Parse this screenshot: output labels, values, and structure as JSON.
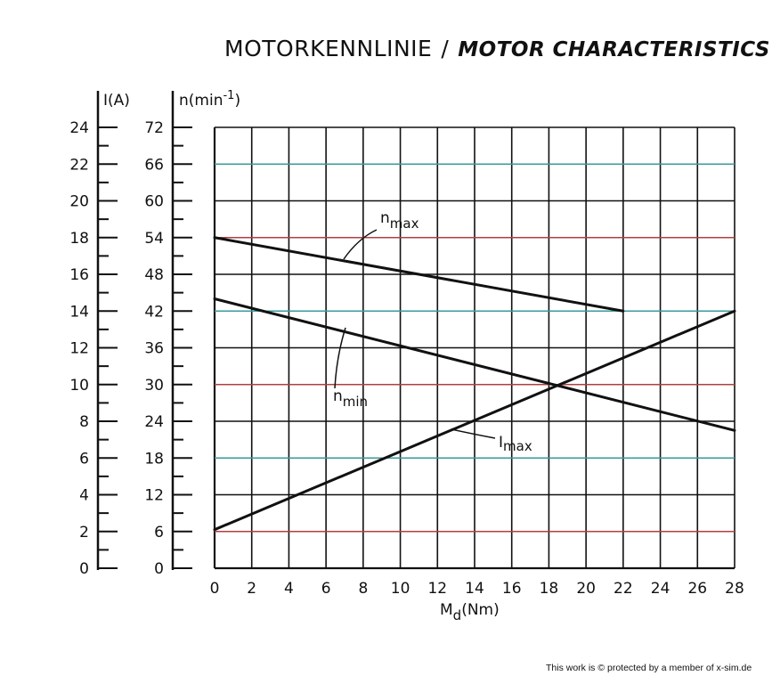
{
  "title": {
    "de": "MOTORKENNLINIE",
    "separator": "/",
    "en": "MOTOR CHARACTERISTICS"
  },
  "axes": {
    "current_label": "I(A)",
    "speed_label_base": "n(min",
    "speed_label_exp": "-1",
    "speed_label_close": ")",
    "x_label_base": "M",
    "x_label_sub": "d",
    "x_label_unit": "(Nm)"
  },
  "footer": "This work is © protected by a member of x-sim.de",
  "colors": {
    "line": "#111111",
    "grid": "#111111",
    "grid_tint_red": "#b04040",
    "grid_tint_teal": "#3a9a9a"
  },
  "chart_data": {
    "type": "line",
    "x": {
      "label": "Md(Nm)",
      "range": [
        0,
        28
      ],
      "ticks": [
        0,
        2,
        4,
        6,
        8,
        10,
        12,
        14,
        16,
        18,
        20,
        22,
        24,
        26,
        28
      ]
    },
    "y_current": {
      "label": "I(A)",
      "range": [
        0,
        24
      ],
      "ticks": [
        0,
        2,
        4,
        6,
        8,
        10,
        12,
        14,
        16,
        18,
        20,
        22,
        24
      ]
    },
    "y_speed": {
      "label": "n(min-1)",
      "range": [
        0,
        72
      ],
      "ticks": [
        0,
        6,
        12,
        18,
        24,
        30,
        36,
        42,
        48,
        54,
        60,
        66,
        72
      ]
    },
    "grid": true,
    "series": [
      {
        "name": "n max",
        "label_main": "n",
        "label_sub": "max",
        "axis": "speed",
        "x": [
          0,
          22
        ],
        "y": [
          54,
          42
        ]
      },
      {
        "name": "n min",
        "label_main": "n",
        "label_sub": "min",
        "axis": "speed",
        "x": [
          0,
          28
        ],
        "y": [
          44,
          22.5
        ]
      },
      {
        "name": "I max",
        "label_main": "I",
        "label_sub": "max",
        "axis": "current",
        "x": [
          0,
          28
        ],
        "y": [
          2.1,
          14
        ]
      }
    ]
  }
}
